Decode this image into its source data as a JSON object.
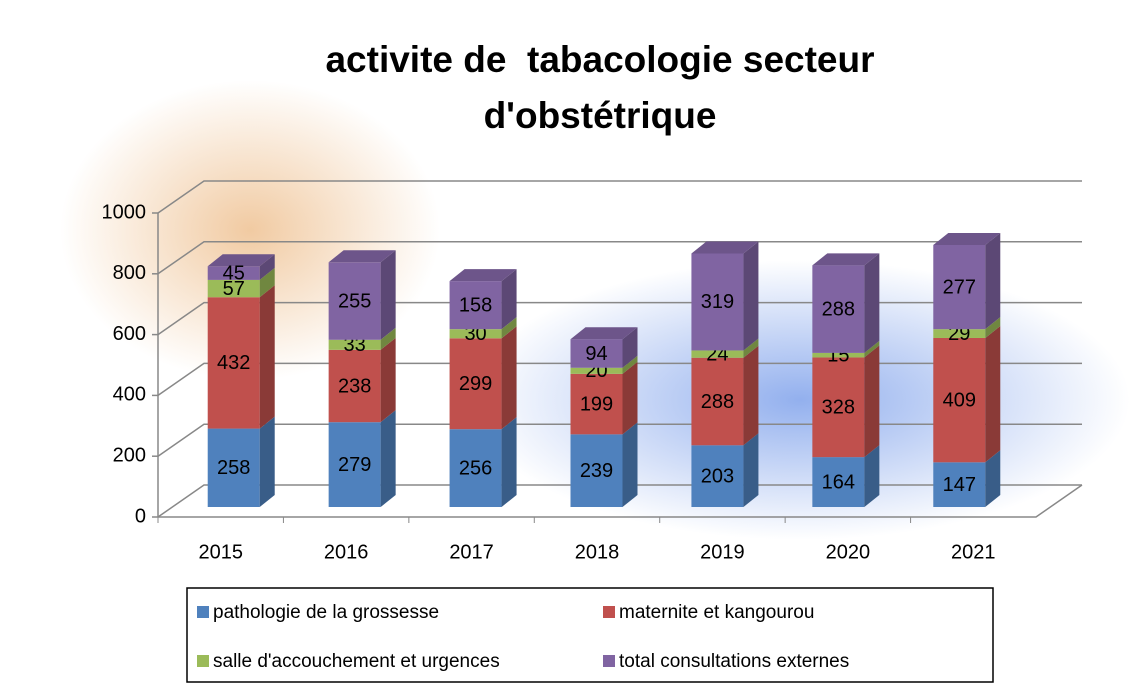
{
  "chart_data": {
    "type": "bar3d_stacked",
    "title": [
      "activite de  tabacologie secteur",
      "d'obstétrique"
    ],
    "categories": [
      "2015",
      "2016",
      "2017",
      "2018",
      "2019",
      "2020",
      "2021"
    ],
    "series": [
      {
        "name": "pathologie de la grossesse",
        "color": "#4f81bd",
        "values": [
          258,
          279,
          256,
          239,
          203,
          164,
          147
        ]
      },
      {
        "name": "maternite et kangourou",
        "color": "#c0504d",
        "values": [
          432,
          238,
          299,
          199,
          288,
          328,
          409
        ]
      },
      {
        "name": "salle d'accouchement et urgences",
        "color": "#9bbb59",
        "values": [
          57,
          33,
          30,
          20,
          24,
          15,
          29
        ]
      },
      {
        "name": "total consultations externes",
        "color": "#8064a2",
        "values": [
          45,
          255,
          158,
          94,
          319,
          288,
          277
        ]
      }
    ],
    "ylim": [
      0,
      1000
    ],
    "yticks": [
      0,
      200,
      400,
      600,
      800,
      1000
    ],
    "grid": true
  }
}
